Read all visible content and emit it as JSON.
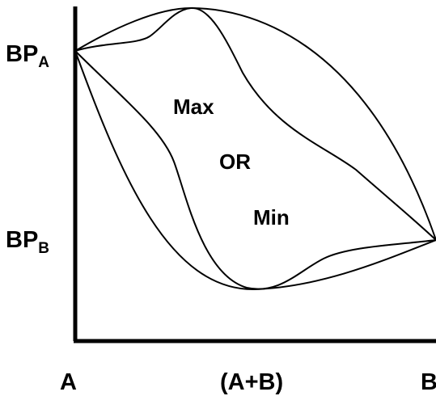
{
  "labels": {
    "y_top_main": "BP",
    "y_top_sub": "A",
    "y_bottom_main": "BP",
    "y_bottom_sub": "B",
    "x_left": "A",
    "x_middle": "(A+B)",
    "x_right": "B",
    "region_max": "Max",
    "region_or": "OR",
    "region_min": "Min"
  },
  "colors": {
    "ink": "#000000",
    "background": "#ffffff"
  }
}
